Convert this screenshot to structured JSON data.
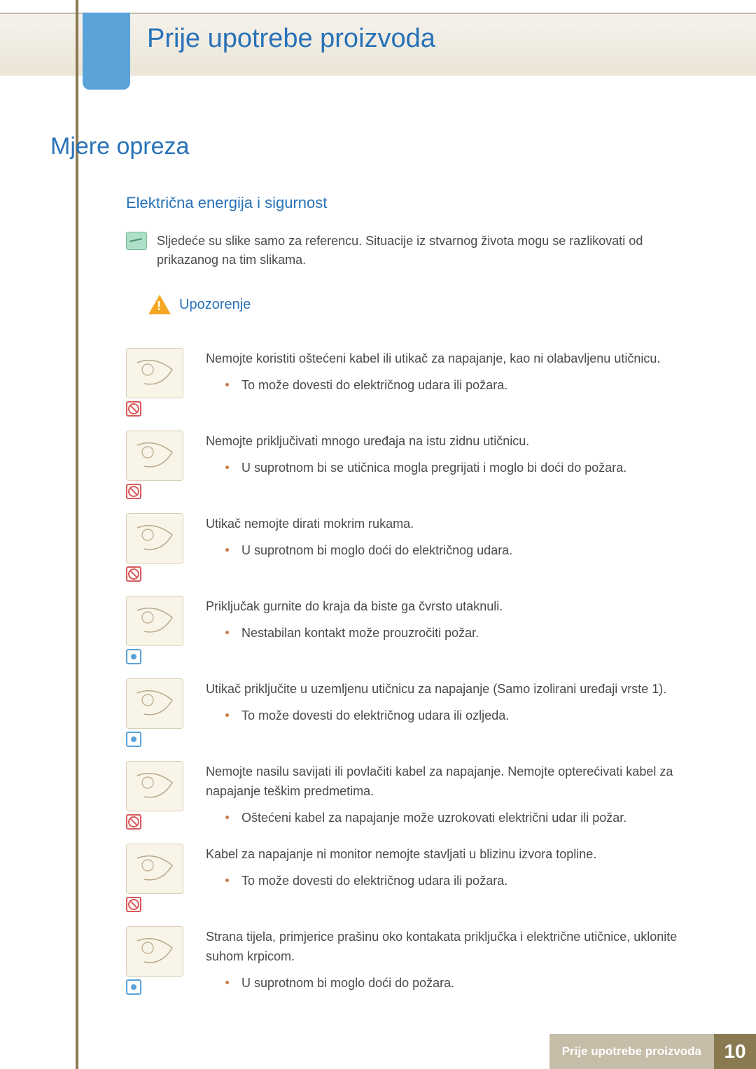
{
  "colors": {
    "heading_blue": "#2872b8",
    "tab_blue": "#5aa3d9",
    "beige_bar": "#ebe5d7",
    "olive_side": "#8a7a52",
    "footer_tan": "#c5bda8",
    "text": "#4a4a4a",
    "bullet": "#c97a4a",
    "illus_bg": "#f9f4e8",
    "badge_red": "#d85a5a"
  },
  "typography": {
    "doc_title_pt": 38,
    "h1_pt": 34,
    "h2_pt": 22,
    "body_pt": 18,
    "warning_pt": 20,
    "footer_label_pt": 17,
    "footer_page_pt": 28
  },
  "header": {
    "doc_title": "Prije upotrebe proizvoda"
  },
  "section": {
    "h1": "Mjere opreza",
    "h2": "Električna energija i sigurnost",
    "note": "Sljedeće su slike samo za referencu. Situacije iz stvarnog života mogu se razlikovati od prikazanog na tim slikama.",
    "warning_label": "Upozorenje"
  },
  "items": [
    {
      "badge": "red",
      "main": "Nemojte koristiti oštećeni kabel ili utikač za napajanje, kao ni olabavljenu utičnicu.",
      "bullet": "To može dovesti do električnog udara ili požara."
    },
    {
      "badge": "red",
      "main": "Nemojte priključivati mnogo uređaja na istu zidnu utičnicu.",
      "bullet": "U suprotnom bi se utičnica mogla pregrijati i moglo bi doći do požara."
    },
    {
      "badge": "red",
      "main": "Utikač nemojte dirati mokrim rukama.",
      "bullet": "U suprotnom bi moglo doći do električnog udara."
    },
    {
      "badge": "blue",
      "main": "Priključak gurnite do kraja da biste ga čvrsto utaknuli.",
      "bullet": "Nestabilan kontakt može prouzročiti požar."
    },
    {
      "badge": "blue",
      "main": "Utikač priključite u uzemljenu utičnicu za napajanje (Samo izolirani uređaji vrste 1).",
      "bullet": "To može dovesti do električnog udara ili ozljeda."
    },
    {
      "badge": "red",
      "main": "Nemojte nasilu savijati ili povlačiti kabel za napajanje. Nemojte opterećivati kabel za napajanje teškim predmetima.",
      "bullet": "Oštećeni kabel za napajanje može uzrokovati električni udar ili požar."
    },
    {
      "badge": "red",
      "main": "Kabel za napajanje ni monitor nemojte stavljati u blizinu izvora topline.",
      "bullet": "To može dovesti do električnog udara ili požara."
    },
    {
      "badge": "blue",
      "main": "Strana tijela, primjerice prašinu oko kontakata priključka i električne utičnice, uklonite suhom krpicom.",
      "bullet": "U suprotnom bi moglo doći do požara."
    }
  ],
  "footer": {
    "label": "Prije upotrebe proizvoda",
    "page": "10"
  }
}
